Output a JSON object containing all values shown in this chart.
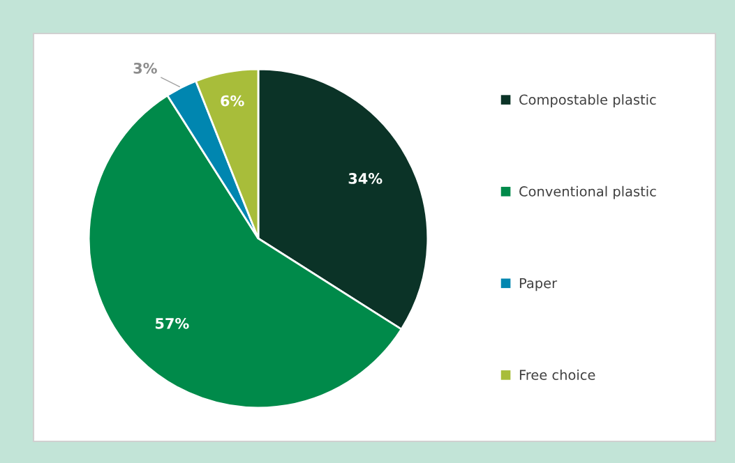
{
  "chart_data": {
    "type": "pie",
    "categories": [
      "Compostable plastic",
      "Conventional plastic",
      "Paper",
      "Free choice"
    ],
    "values": [
      34,
      57,
      3,
      6
    ],
    "colors": [
      "#0b3327",
      "#008a4a",
      "#0086b0",
      "#a8bd3a"
    ],
    "value_labels": [
      "34%",
      "57%",
      "3%",
      "6%"
    ],
    "legend": "right"
  }
}
